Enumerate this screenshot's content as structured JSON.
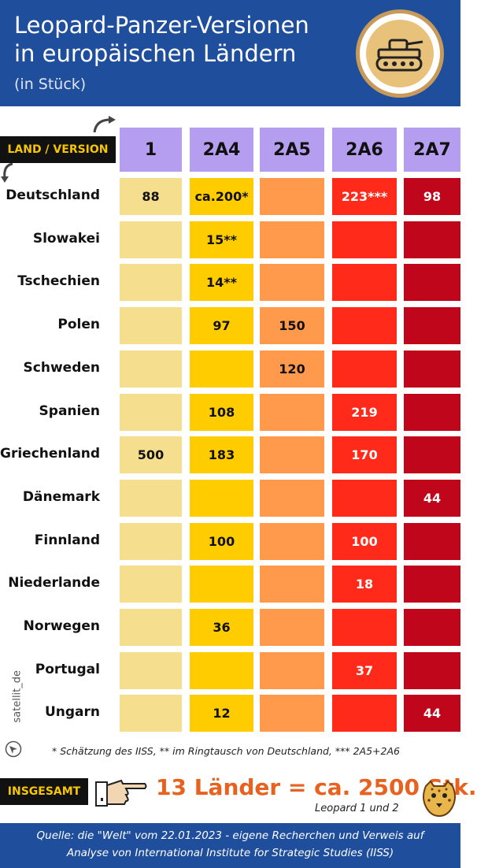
{
  "header": {
    "title_line1": "Leopard-Panzer-Versionen",
    "title_line2": "in europäischen Ländern",
    "subtitle": "(in Stück)"
  },
  "table": {
    "corner_label": "LAND / VERSION",
    "versions": [
      "1",
      "2A4",
      "2A5",
      "2A6",
      "2A7"
    ],
    "rows": [
      {
        "country": "Deutschland",
        "values": [
          "88",
          "ca.200*",
          "",
          "223***",
          "98"
        ]
      },
      {
        "country": "Slowakei",
        "values": [
          "",
          "15**",
          "",
          "",
          ""
        ]
      },
      {
        "country": "Tschechien",
        "values": [
          "",
          "14**",
          "",
          "",
          ""
        ]
      },
      {
        "country": "Polen",
        "values": [
          "",
          "97",
          "150",
          "",
          ""
        ]
      },
      {
        "country": "Schweden",
        "values": [
          "",
          "",
          "120",
          "",
          ""
        ]
      },
      {
        "country": "Spanien",
        "values": [
          "",
          "108",
          "",
          "219",
          ""
        ]
      },
      {
        "country": "Griechenland",
        "values": [
          "500",
          "183",
          "",
          "170",
          ""
        ]
      },
      {
        "country": "Dänemark",
        "values": [
          "",
          "",
          "",
          "",
          "44"
        ]
      },
      {
        "country": "Finnland",
        "values": [
          "",
          "100",
          "",
          "100",
          ""
        ]
      },
      {
        "country": "Niederlande",
        "values": [
          "",
          "",
          "",
          "18",
          ""
        ]
      },
      {
        "country": "Norwegen",
        "values": [
          "",
          "36",
          "",
          "",
          ""
        ]
      },
      {
        "country": "Portugal",
        "values": [
          "",
          "",
          "",
          "37",
          ""
        ]
      },
      {
        "country": "Ungarn",
        "values": [
          "",
          "12",
          "",
          "",
          "44"
        ]
      }
    ],
    "column_colors": [
      "#f5df8e",
      "#ffcc00",
      "#ff9a4d",
      "#ff2a1a",
      "#c0061a"
    ]
  },
  "chart_data": {
    "type": "table",
    "title": "Leopard-Panzer-Versionen in europäischen Ländern",
    "subtitle": "(in Stück)",
    "columns": [
      "1",
      "2A4",
      "2A5",
      "2A6",
      "2A7"
    ],
    "rows": [
      "Deutschland",
      "Slowakei",
      "Tschechien",
      "Polen",
      "Schweden",
      "Spanien",
      "Griechenland",
      "Dänemark",
      "Finnland",
      "Niederlande",
      "Norwegen",
      "Portugal",
      "Ungarn"
    ]
  },
  "footnote": "* Schätzung des IISS, ** im Ringtausch von Deutschland, *** 2A5+2A6",
  "watermark": "satellit_de",
  "total": {
    "label": "INSGESAMT",
    "text": "13 Länder = ca. 2500 Stk.",
    "sub": "Leopard 1 und 2"
  },
  "footer": {
    "line1": "Quelle:  die \"Welt\" vom 22.01.2023 - eigene Recherchen und Verweis auf",
    "line2": "Analyse von International Institute for Strategic Studies (IISS)"
  },
  "icons": {
    "badge": "tank-icon",
    "hand": "pointing-hand-icon",
    "mascot": "leopard-head-icon"
  }
}
